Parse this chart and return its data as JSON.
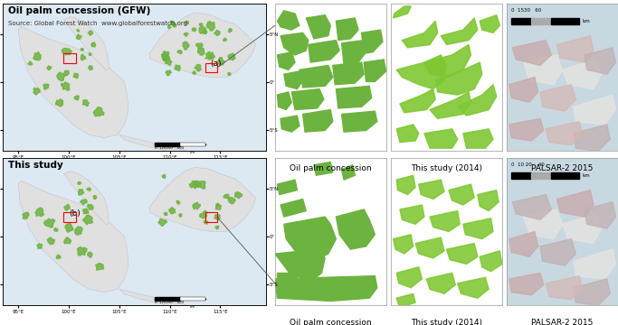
{
  "figure_width": 6.83,
  "figure_height": 3.6,
  "dpi": 100,
  "background_color": "#ffffff",
  "water_color": "#dce8f2",
  "land_color": "#e0e0e0",
  "land_edge": "#bbbbbb",
  "palm_color": "#6db33f",
  "palm_color_light": "#8cc84b",
  "row_labels": [
    "Oil palm concession (GFW)",
    "This study"
  ],
  "row_sublabel": "Source: Global Forest Watch  www.globalforestwatch.org",
  "col_labels": [
    "Oil palm concession",
    "This study (2014)",
    "PALSAR-2 2015"
  ],
  "palsar_bg": "#c8d8e0",
  "palsar_pink1": "#c8a8a8",
  "palsar_pink2": "#d4b8b4",
  "palsar_white": "#e8e4e0",
  "font_size_title": 7.5,
  "font_size_subtitle": 5.0,
  "font_size_col": 6.5,
  "font_size_tick": 4.0,
  "font_size_region": 6.5
}
